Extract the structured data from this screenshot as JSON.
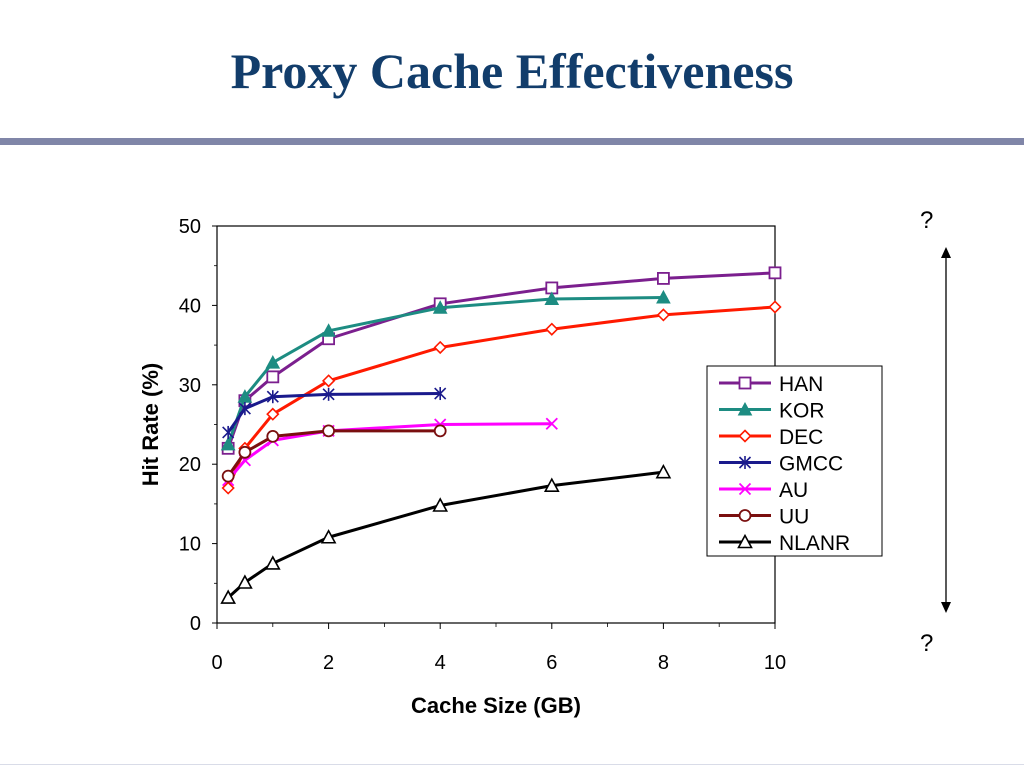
{
  "slide": {
    "title": "Proxy Cache Effectiveness",
    "annotation_top": "?",
    "annotation_bottom": "?"
  },
  "chart_data": {
    "type": "line",
    "title": "",
    "xlabel": "Cache Size (GB)",
    "ylabel": "Hit Rate (%)",
    "xlim": [
      0,
      10
    ],
    "ylim": [
      0,
      50
    ],
    "xticks": [
      0,
      2,
      4,
      6,
      8,
      10
    ],
    "yticks": [
      0,
      10,
      20,
      30,
      40,
      50
    ],
    "grid": false,
    "legend_position": "right",
    "series": [
      {
        "name": "HAN",
        "color": "#7b1f8e",
        "marker": "square",
        "x": [
          0.2,
          0.5,
          1,
          2,
          4,
          6,
          8,
          10
        ],
        "y": [
          22,
          28,
          31,
          35.8,
          40.2,
          42.2,
          43.4,
          44.1
        ]
      },
      {
        "name": "KOR",
        "color": "#1d8c82",
        "marker": "triangle-filled",
        "x": [
          0.2,
          0.5,
          1,
          2,
          4,
          6,
          8
        ],
        "y": [
          22.5,
          28.5,
          32.8,
          36.8,
          39.7,
          40.8,
          41
        ]
      },
      {
        "name": "DEC",
        "color": "#ff1a00",
        "marker": "diamond",
        "x": [
          0.2,
          0.5,
          1,
          2,
          4,
          6,
          8,
          10
        ],
        "y": [
          17,
          22,
          26.3,
          30.5,
          34.7,
          37,
          38.8,
          39.8
        ]
      },
      {
        "name": "GMCC",
        "color": "#1a1a8c",
        "marker": "asterisk",
        "x": [
          0.2,
          0.5,
          1,
          2,
          4
        ],
        "y": [
          24,
          27,
          28.5,
          28.8,
          28.9
        ]
      },
      {
        "name": "AU",
        "color": "#ff00ff",
        "marker": "x",
        "x": [
          0.2,
          0.5,
          1,
          2,
          4,
          6
        ],
        "y": [
          18,
          20.5,
          23,
          24.2,
          25,
          25.1
        ]
      },
      {
        "name": "UU",
        "color": "#7a0f0f",
        "marker": "circle",
        "x": [
          0.2,
          0.5,
          1,
          2,
          4
        ],
        "y": [
          18.5,
          21.5,
          23.5,
          24.2,
          24.2
        ]
      },
      {
        "name": "NLANR",
        "color": "#000000",
        "marker": "triangle-open",
        "x": [
          0.2,
          0.5,
          1,
          2,
          4,
          6,
          8
        ],
        "y": [
          3.2,
          5.1,
          7.5,
          10.8,
          14.8,
          17.3,
          19
        ]
      }
    ]
  }
}
